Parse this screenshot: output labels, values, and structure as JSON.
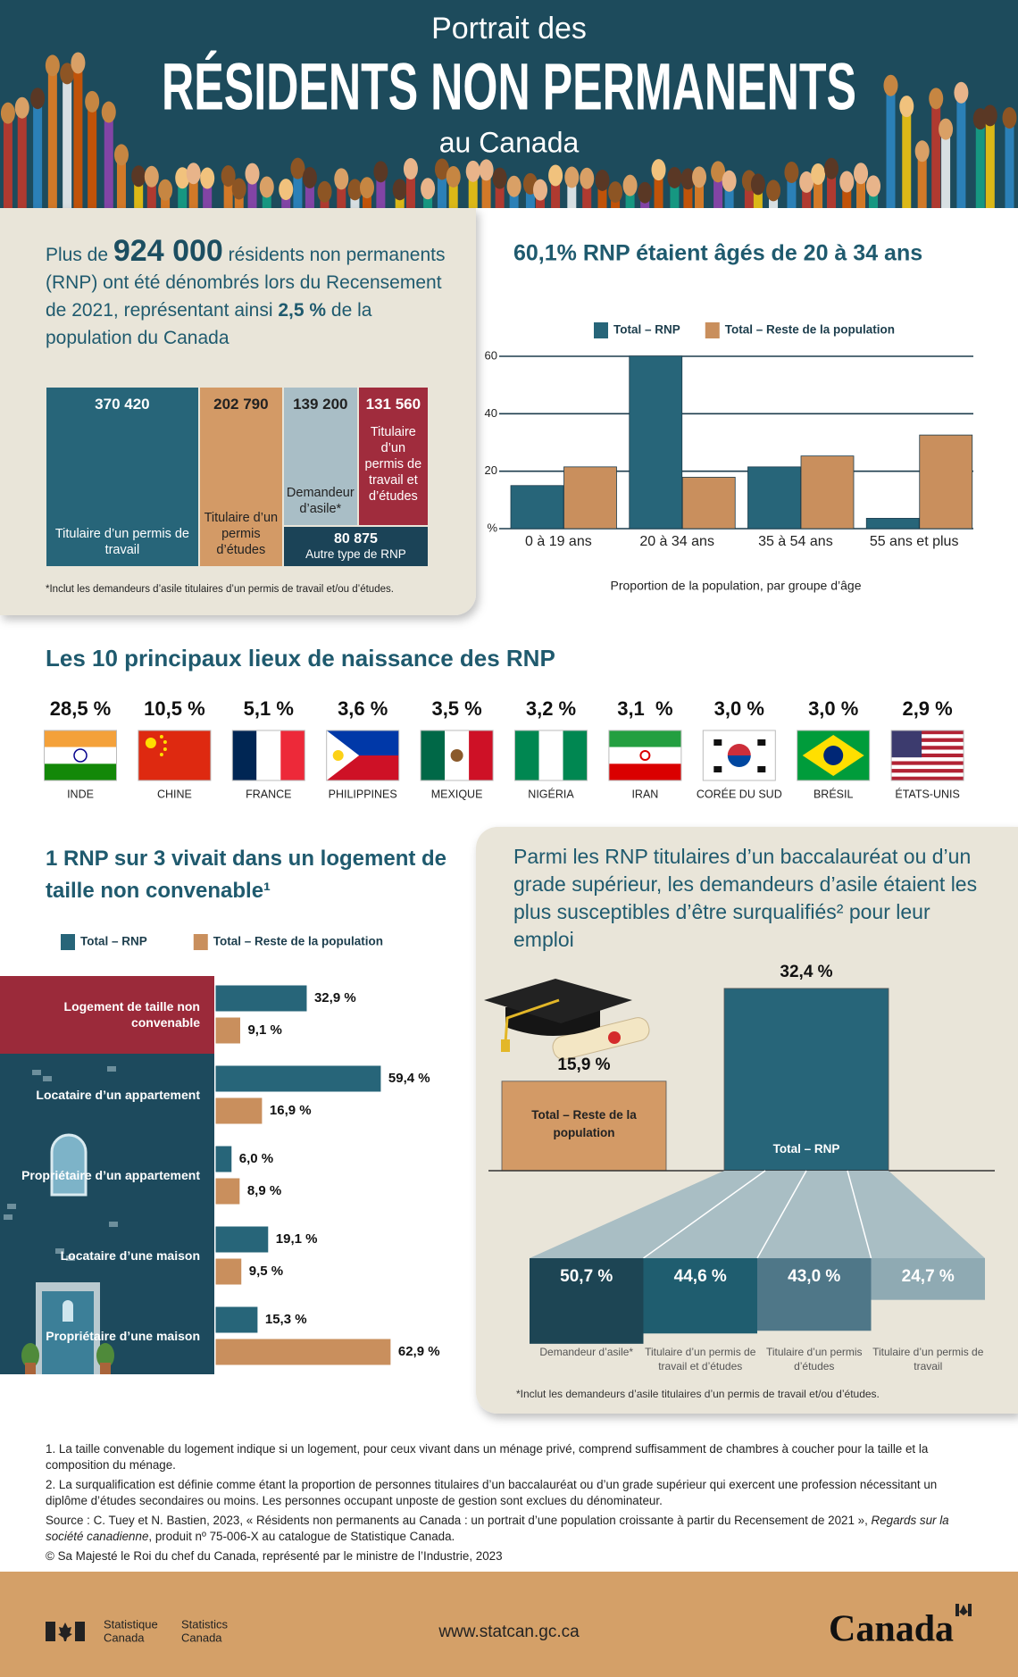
{
  "header": {
    "line1": "Portrait des",
    "line2": "RÉSIDENTS NON PERMANENTS",
    "line3": "au Canada"
  },
  "intro": {
    "prefix": "Plus de",
    "number": "924 000",
    "middle": "résidents non permanents (RNP) ont été dénombrés lors du Recensement de 2021, représentant ainsi",
    "percent": "2,5 %",
    "suffix": "de la population du Canada"
  },
  "birthplaces": {
    "title": "Les 10 principaux lieux de naissance des RNP",
    "items": [
      {
        "value": "28,5 %",
        "label": "INDE"
      },
      {
        "value": "10,5 %",
        "label": "CHINE"
      },
      {
        "value": "5,1 %",
        "label": "FRANCE"
      },
      {
        "value": "3,6 %",
        "label": "PHILIPPINES"
      },
      {
        "value": "3,5 %",
        "label": "MEXIQUE"
      },
      {
        "value": "3,2 %",
        "label": "NIGÉRIA"
      },
      {
        "value": "3,1  %",
        "label": "IRAN"
      },
      {
        "value": "3,0 %",
        "label": "CORÉE DU SUD"
      },
      {
        "value": "3,0 %",
        "label": "BRÉSIL"
      },
      {
        "value": "2,9 %",
        "label": "ÉTATS-UNIS"
      }
    ]
  },
  "chart_data": [
    {
      "type": "treemap",
      "categories": [
        "Titulaire d’un permis de travail",
        "Titulaire d’un permis d’études",
        "Demandeur d’asile*",
        "Titulaire d’un permis de travail et d’études",
        "Autre type de RNP"
      ],
      "values": [
        370420,
        202790,
        139200,
        131560,
        80875
      ],
      "value_labels": [
        "370 420",
        "202 790",
        "139 200",
        "131 560",
        "80 875"
      ],
      "colors": [
        "#276579",
        "#d39a66",
        "#a9bec6",
        "#a02c3d",
        "#1b4357"
      ],
      "footnote": "*Inclut les demandeurs d’asile titulaires d’un permis de travail et/ou d’études."
    },
    {
      "type": "bar",
      "title": "60,1% RNP étaient âgés de 20 à 34 ans",
      "categories": [
        "0 à 19 ans",
        "20 à 34 ans",
        "35 à 54 ans",
        "55 ans et plus"
      ],
      "series": [
        {
          "name": "Total – RNP",
          "color": "#276579",
          "values": [
            15,
            60.1,
            21.5,
            3.6
          ]
        },
        {
          "name": "Total – Reste de la population",
          "color": "#c98f5d",
          "values": [
            21.5,
            17.9,
            25.3,
            32.6
          ]
        }
      ],
      "ylim": [
        0,
        60
      ],
      "yticks": [
        {
          "value": 0,
          "label": "%"
        },
        20,
        40,
        60
      ],
      "xlabel": "Proportion de la population, par groupe d’âge",
      "grid": true,
      "legend": "top"
    },
    {
      "type": "barh",
      "title": "1 RNP sur 3 vivait dans un logement de taille non convenable¹",
      "categories": [
        "Logement de taille non convenable",
        "Locataire d’un appartement",
        "Propriétaire d’un appartement",
        "Locataire d’une maison",
        "Propriétaire d’une maison"
      ],
      "series": [
        {
          "name": "Total – RNP",
          "color": "#276579",
          "values": [
            32.9,
            59.4,
            6.0,
            19.1,
            15.3
          ],
          "value_labels": [
            "32,9 %",
            "59,4 %",
            "6,0 %",
            "19,1 %",
            "15,3 %"
          ]
        },
        {
          "name": "Total – Reste de la population",
          "color": "#c98f5d",
          "values": [
            9.1,
            16.9,
            8.9,
            9.5,
            62.9
          ],
          "value_labels": [
            "9,1 %",
            "16,9 %",
            "8,9 %",
            "9,5 %",
            "62,9 %"
          ]
        }
      ],
      "legend": "top"
    },
    {
      "type": "bar",
      "title": "Parmi les RNP titulaires d’un baccalauréat ou d’un grade supérieur, les demandeurs d’asile étaient les plus susceptibles d’être surqualifiés² pour leur emploi",
      "categories": [
        "Total – Reste de la population",
        "Total – RNP"
      ],
      "values": [
        15.9,
        32.4
      ],
      "value_labels": [
        "15,9 %",
        "32,4 %"
      ],
      "colors": [
        "#d39a66",
        "#276579"
      ],
      "breakdown": {
        "categories": [
          "Demandeur d’asile*",
          "Titulaire d’un permis de travail et d’études",
          "Titulaire d’un permis d’études",
          "Titulaire d’un permis de travail"
        ],
        "values": [
          50.7,
          44.6,
          43.0,
          24.7
        ],
        "value_labels": [
          "50,7 %",
          "44,6 %",
          "43,0 %",
          "24,7 %"
        ],
        "colors": [
          "#1d4554",
          "#1f5d6f",
          "#4f7788",
          "#8faab3"
        ]
      },
      "footnote": "*Inclut les demandeurs d’asile titulaires d’un permis de travail et/ou d’études."
    }
  ],
  "notes": {
    "note1": "1. La taille convenable du logement indique si un logement, pour ceux vivant dans un ménage privé, comprend suffisamment de chambres à coucher pour la taille et la composition du ménage.",
    "note2": "2. La surqualification est définie comme étant la proportion de personnes titulaires d’un baccalauréat ou d’un grade supérieur qui exercent une profession nécessitant un diplôme d’études secondaires ou moins. Les personnes occupant unposte de gestion sont exclues du dénominateur.",
    "source_prefix": "Source : C. Tuey et N. Bastien, 2023, « Résidents non permanents au Canada : un portrait d’une population croissante à partir du Recensement de 2021 »,",
    "source_italic": "Regards sur la société canadienne",
    "source_suffix": ", produit nº 75-006-X au catalogue de Statistique Canada.",
    "copyright": "© Sa Majesté le Roi du chef du Canada, représenté par le ministre de l’Industrie, 2023"
  },
  "footer": {
    "fr_line1": "Statistique",
    "fr_line2": "Canada",
    "en_line1": "Statistics",
    "en_line2": "Canada",
    "url": "www.statcan.gc.ca",
    "wordmark": "Canada"
  }
}
